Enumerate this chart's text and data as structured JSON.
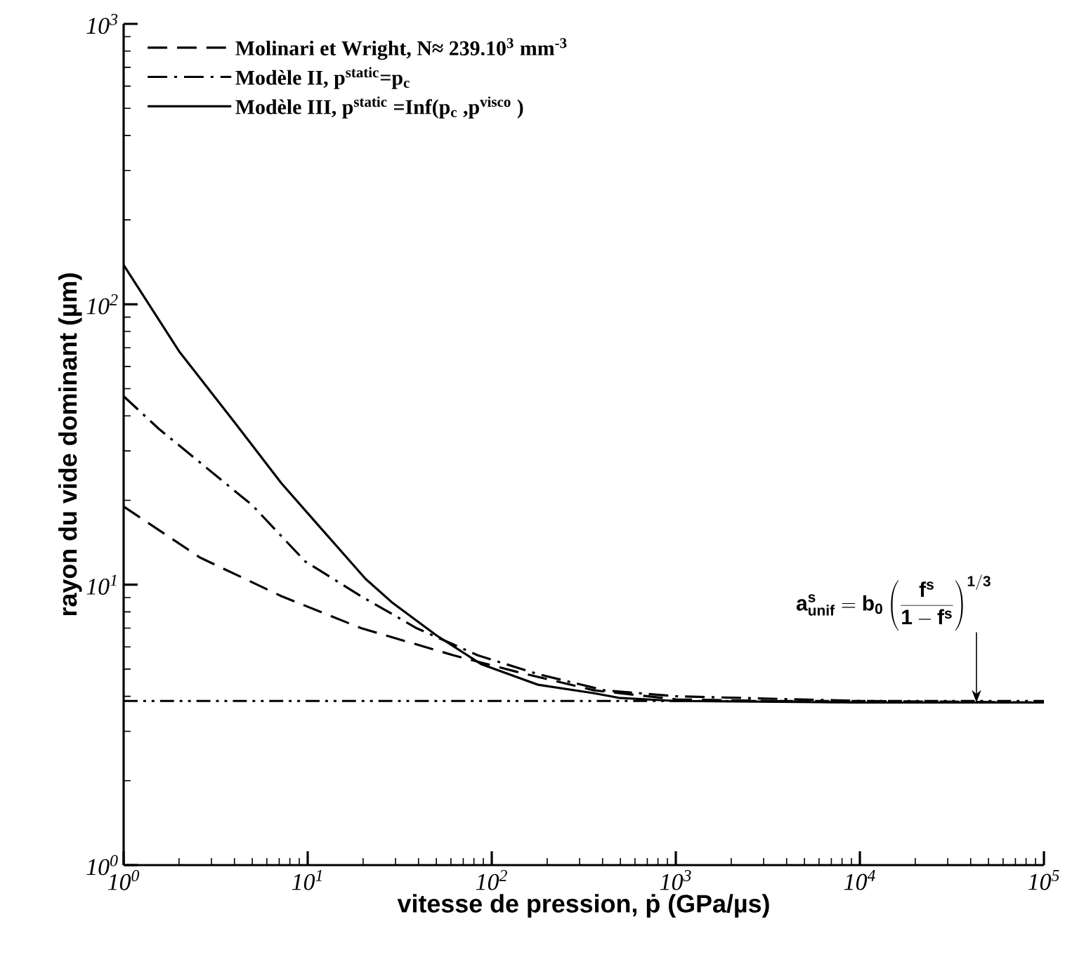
{
  "chart_data": {
    "type": "line",
    "xlabel": "vitesse de pression, ṗ (GPa/µs)",
    "ylabel": "rayon du vide dominant (µm)",
    "log": "xy",
    "legend": "top left",
    "grid": false,
    "xlim": [
      1,
      100000
    ],
    "ylim": [
      1,
      1000
    ],
    "xticks": [
      {
        "value": 1,
        "label": "10$^{0}$"
      },
      {
        "value": 10,
        "label": "10$^{1}$"
      },
      {
        "value": 100,
        "label": "10$^{2}$"
      },
      {
        "value": 1000,
        "label": "10$^{3}$"
      },
      {
        "value": 10000,
        "label": "10$^{4}$"
      },
      {
        "value": 100000,
        "label": "10$^{5}$"
      }
    ],
    "yticks": [
      {
        "value": 1,
        "label": "10$^{0}$"
      },
      {
        "value": 10,
        "label": "10$^{1}$"
      },
      {
        "value": 100,
        "label": "10$^{2}$"
      },
      {
        "value": 1000,
        "label": "10$^{3}$"
      }
    ],
    "series": [
      {
        "name": "Molinari et Wright, N≈ 239.10$^{3}$ mm$^{-3}$",
        "color": "#000000",
        "line_style": "dashed",
        "x": [
          1,
          2.6,
          7.2,
          19.5,
          62,
          135,
          360,
          1000,
          10000,
          100000
        ],
        "values": [
          19,
          12.5,
          9.1,
          7.0,
          5.6,
          4.9,
          4.2,
          3.9,
          3.8,
          3.8
        ]
      },
      {
        "name": "Modèle II, p$^{static}$=p$_{c}$",
        "color": "#000000",
        "line_style": "dashdot",
        "x": [
          1,
          1.55,
          5.0,
          9.7,
          19.5,
          39,
          84,
          178,
          410,
          1000,
          10000,
          100000
        ],
        "values": [
          47,
          36,
          19.2,
          12.1,
          9.1,
          7.0,
          5.6,
          4.8,
          4.2,
          4.0,
          3.85,
          3.8
        ]
      },
      {
        "name": "Modèle III, p$^{static}$ =Inf(p$_{c}$ ,p$^{visco}$ )",
        "color": "#000000",
        "line_style": "solid",
        "x": [
          1,
          2,
          4.0,
          7.2,
          10.7,
          20.6,
          29,
          50,
          88,
          178,
          360,
          490,
          1000,
          10000,
          100000
        ],
        "values": [
          138,
          68,
          38,
          23,
          17.1,
          10.5,
          8.6,
          6.6,
          5.2,
          4.4,
          4.1,
          3.95,
          3.85,
          3.8,
          3.8
        ]
      }
    ],
    "ref_lines": [
      {
        "axis": "y",
        "value": 3.85,
        "color": "#000000",
        "line_style": "dashdotdot"
      }
    ],
    "annotations": [
      {
        "text": "\\mathbf{a^{s}_{unif} = b_{0}\\left(\\frac{f^{s}}{1-f^{s}}\\right)^{1/3}}",
        "x": 43000,
        "y": 3.8
      }
    ]
  }
}
